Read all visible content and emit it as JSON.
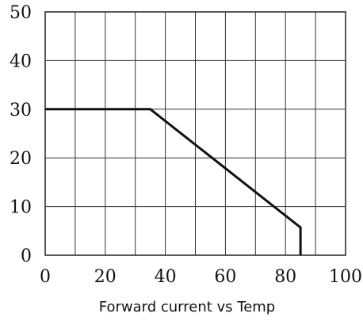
{
  "chart_data": {
    "type": "line",
    "title": "",
    "xlabel": "Forward current vs Temp",
    "ylabel": "",
    "xlim": [
      0,
      100
    ],
    "ylim": [
      0,
      50
    ],
    "x_ticks": [
      0,
      20,
      40,
      60,
      80,
      100
    ],
    "y_ticks": [
      0,
      10,
      20,
      30,
      40,
      50
    ],
    "x_tick_labels": [
      "0",
      "20",
      "40",
      "60",
      "80",
      "100"
    ],
    "y_tick_labels": [
      "0",
      "10",
      "20",
      "30",
      "40",
      "50"
    ],
    "grid": {
      "x_step": 10,
      "y_step": 10,
      "visible": true
    },
    "series": [
      {
        "x": [
          0,
          35,
          85,
          85
        ],
        "y": [
          30,
          30,
          5.7,
          0
        ],
        "color": "#111111"
      }
    ]
  }
}
